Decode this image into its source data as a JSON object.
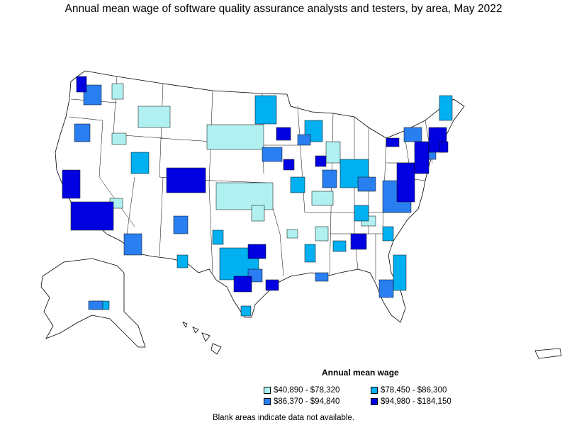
{
  "title": "Annual mean wage of software quality assurance analysts and testers, by area, May 2022",
  "legend": {
    "title": "Annual mean wage",
    "items": [
      {
        "label": "$40,890 - $78,320",
        "color": "#b0f0f0"
      },
      {
        "label": "$78,450 - $86,300",
        "color": "#00b0f0"
      },
      {
        "label": "$86,370 - $94,840",
        "color": "#2a7ff0"
      },
      {
        "label": "$94,980 - $184,150",
        "color": "#0000e0"
      }
    ]
  },
  "footnote": "Blank areas indicate data not available."
}
